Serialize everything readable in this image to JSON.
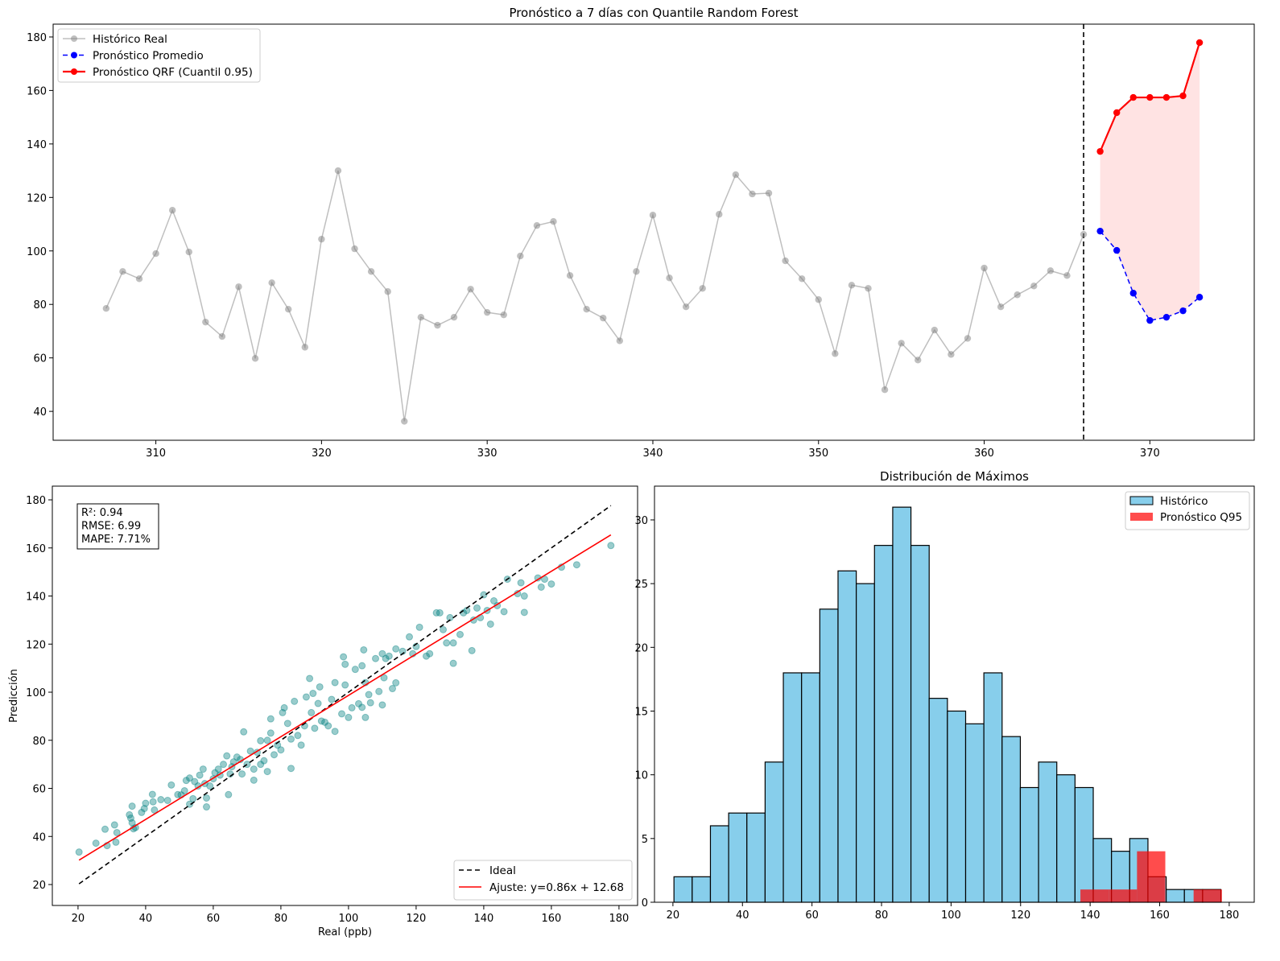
{
  "chart_data": [
    {
      "type": "line",
      "title": "Pronóstico a 7 días con Quantile Random Forest",
      "xlim": [
        303.8,
        376.3
      ],
      "ylim": [
        29.2,
        184.8
      ],
      "xticks": [
        310,
        320,
        330,
        340,
        350,
        360,
        370
      ],
      "yticks": [
        40,
        60,
        80,
        100,
        120,
        140,
        160,
        180
      ],
      "forecast_start_line_x": 366,
      "legend_position": "top-left",
      "series": [
        {
          "name": "Histórico Real",
          "color": "#808080",
          "style": "solid",
          "x": [
            307,
            308,
            309,
            310,
            311,
            312,
            313,
            314,
            315,
            316,
            317,
            318,
            319,
            320,
            321,
            322,
            323,
            324,
            325,
            326,
            327,
            328,
            329,
            330,
            331,
            332,
            333,
            334,
            335,
            336,
            337,
            338,
            339,
            340,
            341,
            342,
            343,
            344,
            345,
            346,
            347,
            348,
            349,
            350,
            351,
            352,
            353,
            354,
            355,
            356,
            357,
            358,
            359,
            360,
            361,
            362,
            363,
            364,
            365,
            366
          ],
          "y": [
            78.5,
            92.3,
            89.6,
            99,
            115.2,
            99.6,
            73.4,
            68,
            86.6,
            59.8,
            88.1,
            78.2,
            64,
            104.4,
            130,
            100.8,
            92.3,
            84.8,
            36.3,
            75.2,
            72.2,
            75.2,
            85.7,
            77,
            76.1,
            98.1,
            109.5,
            111,
            90.8,
            78.2,
            74.9,
            66.4,
            92.3,
            113.4,
            89.9,
            79.1,
            86,
            113.7,
            128.5,
            121.3,
            121.6,
            96.3,
            89.6,
            81.8,
            61.6,
            87.2,
            86,
            48.1,
            65.5,
            59.2,
            70.4,
            61.3,
            67.3,
            93.6,
            79.1,
            83.6,
            86.9,
            92.6,
            90.8,
            106.2
          ]
        },
        {
          "name": "Pronóstico Promedio",
          "color": "#0000ff",
          "style": "dashed",
          "x": [
            367,
            368,
            369,
            370,
            371,
            372,
            373
          ],
          "y": [
            107.4,
            100.2,
            84.2,
            74,
            75.2,
            77.6,
            82.7
          ]
        },
        {
          "name": "Pronóstico QRF (Cuantil 0.95)",
          "color": "#ff0000",
          "style": "solid",
          "x": [
            367,
            368,
            369,
            370,
            371,
            372,
            373
          ],
          "y": [
            137.2,
            151.7,
            157.4,
            157.4,
            157.4,
            158,
            177.9
          ]
        }
      ]
    },
    {
      "type": "scatter",
      "xlabel": "Real (ppb)",
      "ylabel": "Predicción",
      "xlim": [
        12.4,
        185.5
      ],
      "ylim": [
        11.3,
        185.7
      ],
      "xticks": [
        20,
        40,
        60,
        80,
        100,
        120,
        140,
        160,
        180
      ],
      "yticks": [
        20,
        40,
        60,
        80,
        100,
        120,
        140,
        160,
        180
      ],
      "metrics": [
        "R²: 0.94",
        "RMSE: 6.99",
        "MAPE: 7.71%"
      ],
      "legend_position": "bottom-right",
      "ideal": {
        "name": "Ideal",
        "range": [
          20.3,
          177.6
        ]
      },
      "fit": {
        "name": "Ajuste: y=0.86x + 12.68",
        "slope": 0.86,
        "intercept": 12.68
      },
      "point_color": "#008080",
      "points": [
        [
          20.3,
          33.5
        ],
        [
          25.3,
          37.2
        ],
        [
          28,
          43
        ],
        [
          28.6,
          36.2
        ],
        [
          30.8,
          44.8
        ],
        [
          31.2,
          37.6
        ],
        [
          31.5,
          41.6
        ],
        [
          35.2,
          49
        ],
        [
          35.6,
          47.6
        ],
        [
          36,
          52.6
        ],
        [
          36,
          45.7
        ],
        [
          36.4,
          43.2
        ],
        [
          37,
          43.7
        ],
        [
          38.8,
          50
        ],
        [
          39.6,
          51.6
        ],
        [
          40,
          53.8
        ],
        [
          42,
          57.5
        ],
        [
          42.2,
          54.4
        ],
        [
          42.6,
          51
        ],
        [
          44.5,
          55.3
        ],
        [
          46.5,
          55
        ],
        [
          47.6,
          61.4
        ],
        [
          49.5,
          57.4
        ],
        [
          50.5,
          57.3
        ],
        [
          51.5,
          59
        ],
        [
          52,
          63.3
        ],
        [
          53,
          64.3
        ],
        [
          53,
          53.4
        ],
        [
          54,
          55.7
        ],
        [
          54.5,
          62.8
        ],
        [
          55.5,
          61
        ],
        [
          56,
          65.5
        ],
        [
          57,
          68
        ],
        [
          57.5,
          62
        ],
        [
          58,
          56
        ],
        [
          58,
          52.3
        ],
        [
          59,
          61
        ],
        [
          60,
          64
        ],
        [
          60.5,
          66.5
        ],
        [
          61.5,
          68
        ],
        [
          62,
          65.5
        ],
        [
          63,
          70
        ],
        [
          64,
          73.5
        ],
        [
          64.5,
          57.4
        ],
        [
          65,
          66
        ],
        [
          65.5,
          69
        ],
        [
          66,
          71
        ],
        [
          67,
          73
        ],
        [
          68,
          72
        ],
        [
          68.5,
          66
        ],
        [
          69,
          83.5
        ],
        [
          70,
          70
        ],
        [
          71,
          75.5
        ],
        [
          72,
          63.4
        ],
        [
          72,
          68
        ],
        [
          73,
          75
        ],
        [
          74,
          70
        ],
        [
          74,
          79.8
        ],
        [
          75,
          71.5
        ],
        [
          76,
          67
        ],
        [
          76,
          80
        ],
        [
          77,
          88.9
        ],
        [
          77,
          83
        ],
        [
          78,
          74
        ],
        [
          79,
          78
        ],
        [
          80,
          76
        ],
        [
          80.5,
          91.5
        ],
        [
          81,
          93.5
        ],
        [
          82,
          87
        ],
        [
          83,
          68.3
        ],
        [
          83,
          80.5
        ],
        [
          84,
          96.2
        ],
        [
          85,
          82
        ],
        [
          86,
          78
        ],
        [
          87,
          86
        ],
        [
          87.5,
          98
        ],
        [
          88.5,
          105.7
        ],
        [
          89,
          91.5
        ],
        [
          89.5,
          99.5
        ],
        [
          90,
          85
        ],
        [
          91,
          95.3
        ],
        [
          91.5,
          102.2
        ],
        [
          92,
          88
        ],
        [
          93,
          87.5
        ],
        [
          94,
          86
        ],
        [
          95,
          97
        ],
        [
          96,
          83.7
        ],
        [
          96,
          104
        ],
        [
          98,
          91
        ],
        [
          98.5,
          114.7
        ],
        [
          99,
          111.6
        ],
        [
          99,
          103
        ],
        [
          100,
          89.5
        ],
        [
          101,
          93.5
        ],
        [
          102,
          109.5
        ],
        [
          103,
          95.2
        ],
        [
          104,
          93.7
        ],
        [
          104,
          111
        ],
        [
          104.5,
          117.6
        ],
        [
          105,
          89.5
        ],
        [
          105,
          104
        ],
        [
          106,
          99
        ],
        [
          106.5,
          95.6
        ],
        [
          108,
          114
        ],
        [
          109,
          100.3
        ],
        [
          110,
          94.7
        ],
        [
          110,
          116
        ],
        [
          110.5,
          106
        ],
        [
          111,
          114
        ],
        [
          112,
          115
        ],
        [
          113,
          101.5
        ],
        [
          114,
          103.9
        ],
        [
          114,
          118
        ],
        [
          116,
          117
        ],
        [
          118,
          123
        ],
        [
          119,
          116
        ],
        [
          120,
          119
        ],
        [
          121,
          127
        ],
        [
          123,
          115
        ],
        [
          124,
          116
        ],
        [
          126,
          133
        ],
        [
          127,
          133
        ],
        [
          128,
          126
        ],
        [
          129,
          120.5
        ],
        [
          130,
          131
        ],
        [
          131,
          120.5
        ],
        [
          131,
          112
        ],
        [
          133,
          124
        ],
        [
          134,
          133
        ],
        [
          135,
          134
        ],
        [
          136.5,
          117.3
        ],
        [
          137,
          130
        ],
        [
          138,
          135
        ],
        [
          139,
          131
        ],
        [
          140,
          140.5
        ],
        [
          141,
          134
        ],
        [
          142,
          128.3
        ],
        [
          143,
          138
        ],
        [
          144,
          136
        ],
        [
          146,
          133.5
        ],
        [
          147,
          147
        ],
        [
          150,
          141
        ],
        [
          151,
          145.5
        ],
        [
          152,
          133.2
        ],
        [
          152,
          140
        ],
        [
          156,
          147.5
        ],
        [
          157,
          143.7
        ],
        [
          158,
          147
        ],
        [
          160,
          145
        ],
        [
          163,
          152
        ],
        [
          167.5,
          153
        ],
        [
          177.6,
          161
        ]
      ]
    },
    {
      "type": "bar",
      "title": "Distribución de Máximos",
      "xlim": [
        14.7,
        187.2
      ],
      "ylim": [
        0,
        32.65
      ],
      "xticks": [
        20,
        40,
        60,
        80,
        100,
        120,
        140,
        160,
        180
      ],
      "yticks": [
        0,
        5,
        10,
        15,
        20,
        25,
        30
      ],
      "legend_position": "top-right",
      "series": [
        {
          "name": "Histórico",
          "color": "#87ceeb",
          "bin_start": 20.3,
          "bin_end": 177.6,
          "counts": [
            2,
            2,
            6,
            7,
            7,
            11,
            18,
            18,
            23,
            26,
            25,
            28,
            31,
            28,
            16,
            15,
            14,
            18,
            13,
            9,
            11,
            10,
            9,
            5,
            4,
            5,
            2,
            1,
            1,
            1
          ]
        },
        {
          "name": "Pronóstico Q95",
          "color": "#ff0000",
          "bin_start": 137.2,
          "bin_end": 177.9,
          "counts": [
            1,
            1,
            4,
            0,
            1
          ]
        }
      ]
    }
  ]
}
